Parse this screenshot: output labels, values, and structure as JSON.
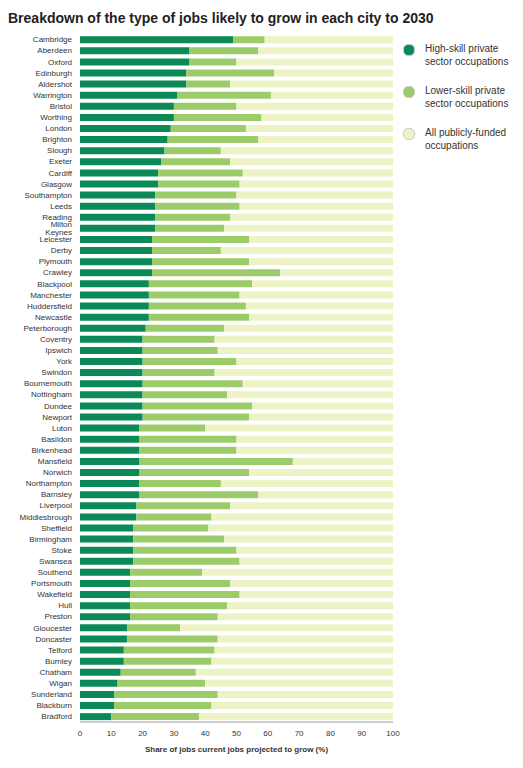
{
  "chart_data": {
    "type": "bar",
    "title": "Breakdown of the type of jobs likely to grow in each city to 2030",
    "x_label": "Share of jobs current jobs projected to grow (%)",
    "orientation": "horizontal",
    "stacked": true,
    "grid": false,
    "legend": "right",
    "xlim": [
      0,
      100
    ],
    "xticks": [
      0,
      10,
      20,
      30,
      40,
      50,
      60,
      70,
      80,
      90,
      100
    ],
    "categories": [
      "Cambridge",
      "Aberdeen",
      "Oxford",
      "Edinburgh",
      "Aldershot",
      "Warrington",
      "Bristol",
      "Worthing",
      "London",
      "Brighton",
      "Slough",
      "Exeter",
      "Cardiff",
      "Glasgow",
      "Southampton",
      "Leeds",
      "Reading",
      "Milton Keynes",
      "Leicester",
      "Derby",
      "Plymouth",
      "Crawley",
      "Blackpool",
      "Manchester",
      "Huddersfield",
      "Newcastle",
      "Peterborough",
      "Coventry",
      "Ipswich",
      "York",
      "Swindon",
      "Bournemouth",
      "Nottingham",
      "Dundee",
      "Newport",
      "Luton",
      "Basildon",
      "Birkenhead",
      "Mansfield",
      "Norwich",
      "Northampton",
      "Barnsley",
      "Liverpool",
      "Middlesbrough",
      "Sheffield",
      "Birmingham",
      "Stoke",
      "Swansea",
      "Southend",
      "Portsmouth",
      "Wakefield",
      "Hull",
      "Preston",
      "Gloucester",
      "Doncaster",
      "Telford",
      "Burnley",
      "Chatham",
      "Wigan",
      "Sunderland",
      "Blackburn",
      "Bradford"
    ],
    "series": [
      {
        "name": "High-skill private sector occupations",
        "color": "#0b8a58",
        "values": [
          49,
          35,
          35,
          34,
          34,
          31,
          30,
          30,
          29,
          28,
          27,
          26,
          25,
          25,
          24,
          24,
          24,
          24,
          23,
          23,
          23,
          23,
          22,
          22,
          22,
          22,
          21,
          20,
          20,
          20,
          20,
          20,
          20,
          20,
          20,
          19,
          19,
          19,
          19,
          19,
          19,
          19,
          18,
          18,
          17,
          17,
          17,
          17,
          16,
          16,
          16,
          16,
          16,
          15,
          15,
          14,
          14,
          13,
          12,
          11,
          11,
          10
        ]
      },
      {
        "name": "Lower-skill private sector occupations",
        "color": "#9ccb6a",
        "values": [
          10,
          22,
          15,
          28,
          14,
          30,
          20,
          28,
          24,
          29,
          18,
          22,
          27,
          26,
          26,
          27,
          24,
          22,
          31,
          22,
          31,
          41,
          33,
          29,
          31,
          32,
          25,
          23,
          24,
          30,
          23,
          32,
          27,
          35,
          34,
          21,
          31,
          31,
          49,
          35,
          26,
          38,
          30,
          24,
          24,
          29,
          33,
          34,
          23,
          32,
          35,
          31,
          28,
          17,
          29,
          29,
          28,
          24,
          28,
          33,
          31,
          28
        ]
      },
      {
        "name": "All publicly-funded occupations",
        "color": "#eef3c6",
        "values": [
          41,
          43,
          50,
          38,
          52,
          39,
          50,
          42,
          47,
          43,
          55,
          52,
          48,
          49,
          50,
          49,
          52,
          54,
          46,
          55,
          46,
          36,
          45,
          49,
          47,
          46,
          54,
          57,
          56,
          50,
          57,
          48,
          53,
          45,
          46,
          60,
          50,
          50,
          32,
          46,
          55,
          43,
          52,
          58,
          59,
          54,
          50,
          49,
          61,
          52,
          49,
          53,
          56,
          68,
          56,
          57,
          58,
          63,
          60,
          56,
          58,
          62
        ]
      }
    ]
  }
}
